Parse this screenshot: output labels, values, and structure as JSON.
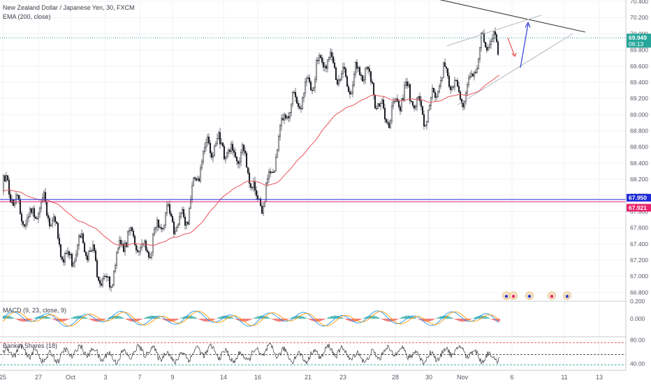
{
  "symbol_title": "New Zealand Dollar / Japanese Yen, 30, FXCM",
  "ema_label": "EMA (200, close)",
  "macd_label": "MACD (9, 23, close, 9)",
  "banker_label": "Banker Shares (18)",
  "colors": {
    "up": "#26a69a",
    "down": "#ef5350",
    "ema": "#e8515a",
    "support_blue": "#1e2ad6",
    "support_red": "#e8236b",
    "resistance_dotted": "#26a69a",
    "trendline": "#222222",
    "channel": "#b5b8c0",
    "arrow_blue": "#2e3fd0",
    "arrow_red": "#ef5350"
  },
  "chart_data": [
    {
      "type": "candlestick",
      "title": "New Zealand Dollar / Japanese Yen, 30, FXCM",
      "ylim": [
        66.7,
        70.4
      ],
      "y_ticks": [
        "70.400",
        "70.200",
        "70.000",
        "69.800",
        "69.600",
        "69.400",
        "69.200",
        "69.000",
        "68.800",
        "68.600",
        "68.400",
        "68.200",
        "68.000",
        "67.800",
        "67.600",
        "67.400",
        "67.200",
        "67.000",
        "66.800"
      ],
      "x_ticks": [
        "25",
        "27",
        "Oct",
        "3",
        "7",
        "9",
        "14",
        "16",
        "21",
        "23",
        "28",
        "30",
        "Nov",
        "6",
        "11",
        "13"
      ],
      "price_labels": [
        {
          "text": "69.949",
          "value": 69.949,
          "timer": "06:13"
        },
        {
          "text": "67.950",
          "value": 67.95
        },
        {
          "text": "67.921",
          "value": 67.921
        }
      ],
      "series": [
        {
          "name": "EMA (200, close)",
          "type": "line"
        },
        {
          "name": "NZD/JPY",
          "type": "candlestick"
        }
      ],
      "key_points": [
        {
          "date": "25",
          "close": 67.95
        },
        {
          "date": "27",
          "close": 67.8
        },
        {
          "date": "Oct",
          "close": 67.35
        },
        {
          "date": "3",
          "close": 67.05
        },
        {
          "date": "7",
          "close": 67.45
        },
        {
          "date": "9",
          "close": 67.6
        },
        {
          "date": "14",
          "close": 68.8
        },
        {
          "date": "16",
          "close": 67.95
        },
        {
          "date": "21",
          "close": 69.5
        },
        {
          "date": "23",
          "close": 69.6
        },
        {
          "date": "28",
          "close": 69.05
        },
        {
          "date": "30",
          "close": 69.2
        },
        {
          "date": "Nov",
          "close": 69.4
        },
        {
          "date": "Nov 5",
          "close": 69.95
        }
      ]
    },
    {
      "type": "line",
      "title": "MACD (9, 23, close, 9)",
      "ylim": [
        -0.2,
        0.2
      ],
      "y_ticks": [
        "0.200",
        "0.000"
      ]
    },
    {
      "type": "line",
      "title": "Banker Shares (18)",
      "ylim": [
        30,
        85
      ],
      "y_ticks": [
        "80.00",
        "40.00"
      ],
      "levels": [
        75,
        55,
        38
      ]
    }
  ]
}
